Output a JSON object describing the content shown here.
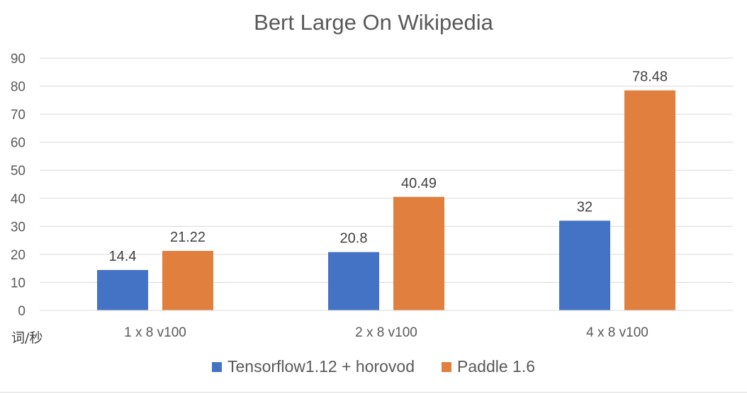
{
  "chart_data": {
    "type": "bar",
    "title": "Bert Large On Wikipedia",
    "categories": [
      "1 x 8 v100",
      "2 x 8 v100",
      "4 x 8 v100"
    ],
    "series": [
      {
        "name": "Tensorflow1.12 + horovod",
        "values": [
          14.4,
          20.8,
          32
        ],
        "labels": [
          "14.4",
          "20.8",
          "32"
        ],
        "color": "#4472C4"
      },
      {
        "name": "Paddle 1.6",
        "values": [
          21.22,
          40.49,
          78.48
        ],
        "labels": [
          "21.22",
          "40.49",
          "78.48"
        ],
        "color": "#E07F3E"
      }
    ],
    "ylim": [
      0,
      90
    ],
    "yticks": [
      "0",
      "10",
      "20",
      "30",
      "40",
      "50",
      "60",
      "70",
      "80",
      "90"
    ],
    "ylabel": "词/秒",
    "xlabel": "",
    "grid": true,
    "legend": "bottom"
  }
}
